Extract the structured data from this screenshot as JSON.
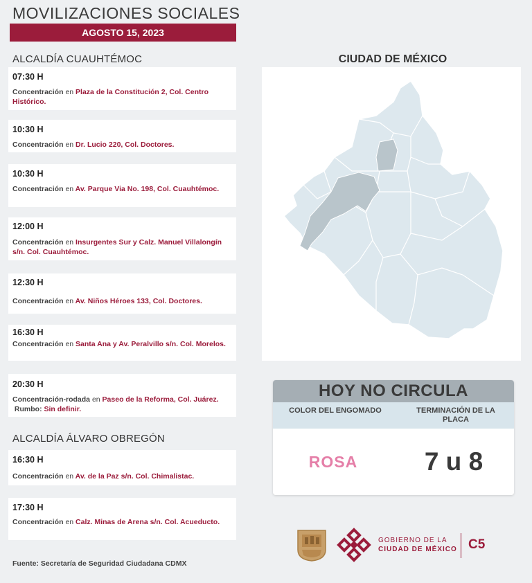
{
  "header": {
    "title": "MOVILIZACIONES SOCIALES",
    "date": "AGOSTO 15, 2023"
  },
  "sections": [
    {
      "title": "ALCALDÍA CUAUHTÉMOC",
      "events": [
        {
          "time": "07:30 H",
          "type": "Concentración",
          "connector": "en",
          "location": "Plaza de la Constitución 2, Col. Centro Histórico."
        },
        {
          "time": "10:30 H",
          "type": "Concentración",
          "connector": "en",
          "location": "Dr. Lucio 220, Col. Doctores."
        },
        {
          "time": "10:30 H",
          "type": "Concentración",
          "connector": "en",
          "location": "Av. Parque Via No. 198, Col. Cuauhtémoc."
        },
        {
          "time": "12:00 H",
          "type": "Concentración",
          "connector": "en",
          "location": "Insurgentes Sur y Calz. Manuel Villalongín s/n. Col. Cuauhtémoc."
        },
        {
          "time": "12:30 H",
          "type": "Concentración",
          "connector": "en",
          "location": "Av. Niños Héroes 133, Col. Doctores."
        },
        {
          "time": "16:30 H",
          "type": "Concentración",
          "connector": "en",
          "location": "Santa Ana y Av. Peralvillo s/n. Col. Morelos."
        },
        {
          "time": "20:30 H",
          "type": "Concentración-rodada",
          "connector": "en",
          "location": "Paseo de la Reforma, Col. Juárez.",
          "extra_label": "Rumbo:",
          "extra_value": "Sin definir."
        }
      ]
    },
    {
      "title": "ALCALDÍA ÁLVARO OBREGÓN",
      "events": [
        {
          "time": "16:30 H",
          "type": "Concentración",
          "connector": "en",
          "location": "Av. de la Paz s/n. Col. Chimalistac."
        },
        {
          "time": "17:30 H",
          "type": "Concentración",
          "connector": "en",
          "location": "Calz. Minas de Arena s/n. Col. Acueducto."
        }
      ]
    }
  ],
  "source": "Fuente: Secretaría de Seguridad Ciudadana CDMX",
  "map": {
    "title": "CIUDAD DE MÉXICO",
    "fill_color": "#dde8ee",
    "highlight_color": "#b9c5cb"
  },
  "hoy_no_circula": {
    "title": "HOY NO CIRCULA",
    "col1_header": "COLOR DEL ENGOMADO",
    "col2_header": "TERMINACIÓN DE LA PLACA",
    "color_value": "ROSA",
    "plates_value": "7 u 8"
  },
  "footer": {
    "gov_line1": "GOBIERNO DE LA",
    "gov_line2": "CIUDAD DE MÉXICO",
    "c5": "C5"
  },
  "colors": {
    "accent": "#9b1c3b",
    "rosa": "#e57fa8"
  }
}
